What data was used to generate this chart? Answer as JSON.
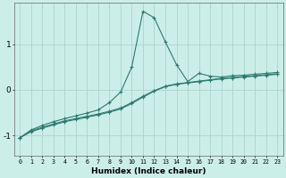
{
  "xlabel": "Humidex (Indice chaleur)",
  "bg_color": "#cceee8",
  "grid_color": "#aad4cc",
  "line_color": "#2d7a6f",
  "xlim": [
    -0.5,
    23.5
  ],
  "ylim": [
    -1.45,
    1.9
  ],
  "yticks": [
    -1,
    0,
    1
  ],
  "xticks": [
    0,
    1,
    2,
    3,
    4,
    5,
    6,
    7,
    8,
    9,
    10,
    11,
    12,
    13,
    14,
    15,
    16,
    17,
    18,
    19,
    20,
    21,
    22,
    23
  ],
  "line1_x": [
    0,
    1,
    2,
    3,
    4,
    5,
    6,
    7,
    8,
    9,
    10,
    11,
    12,
    13,
    14,
    15,
    16,
    17,
    18,
    19,
    20,
    21,
    22,
    23
  ],
  "line1_y": [
    -1.05,
    -0.88,
    -0.78,
    -0.7,
    -0.63,
    -0.57,
    -0.51,
    -0.44,
    -0.28,
    -0.05,
    0.5,
    1.72,
    1.58,
    1.05,
    0.55,
    0.18,
    0.36,
    0.3,
    0.28,
    0.31,
    0.32,
    0.34,
    0.36,
    0.38
  ],
  "line2_x": [
    0,
    1,
    2,
    3,
    4,
    5,
    6,
    7,
    8,
    9,
    10,
    11,
    12,
    13,
    14,
    15,
    16,
    17,
    18,
    19,
    20,
    21,
    22,
    23
  ],
  "line2_y": [
    -1.05,
    -0.9,
    -0.82,
    -0.75,
    -0.68,
    -0.63,
    -0.58,
    -0.53,
    -0.47,
    -0.4,
    -0.28,
    -0.14,
    -0.02,
    0.08,
    0.13,
    0.16,
    0.19,
    0.22,
    0.25,
    0.27,
    0.29,
    0.31,
    0.33,
    0.35
  ],
  "line3_x": [
    0,
    1,
    2,
    3,
    4,
    5,
    6,
    7,
    8,
    9,
    10,
    11,
    12,
    13,
    14,
    15,
    16,
    17,
    18,
    19,
    20,
    21,
    22,
    23
  ],
  "line3_y": [
    -1.05,
    -0.92,
    -0.84,
    -0.77,
    -0.7,
    -0.65,
    -0.6,
    -0.55,
    -0.49,
    -0.42,
    -0.3,
    -0.16,
    -0.03,
    0.07,
    0.12,
    0.15,
    0.18,
    0.21,
    0.24,
    0.26,
    0.28,
    0.3,
    0.32,
    0.34
  ]
}
